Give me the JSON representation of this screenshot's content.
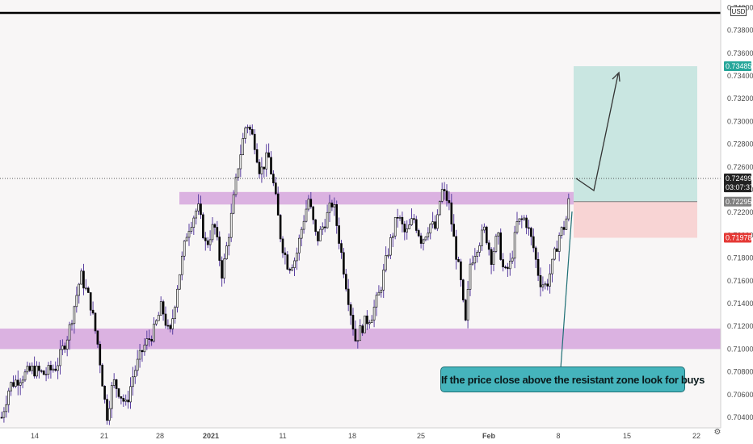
{
  "chart_data": {
    "type": "candlestick",
    "currency": "USD",
    "price_axis": {
      "ticks": [
        "0.74000",
        "0.73800",
        "0.73600",
        "0.73400",
        "0.73200",
        "0.73000",
        "0.72800",
        "0.72600",
        "0.72400",
        "0.72200",
        "0.72000",
        "0.71800",
        "0.71600",
        "0.71400",
        "0.71200",
        "0.71000",
        "0.70800",
        "0.70600",
        "0.70400"
      ],
      "range": [
        0.703,
        0.741
      ],
      "scale": "linear"
    },
    "time_axis": {
      "ticks": [
        "14",
        "21",
        "28",
        "2021",
        "11",
        "18",
        "25",
        "Feb",
        "8",
        "15",
        "22"
      ],
      "bold_ticks": [
        "2021",
        "Feb"
      ]
    },
    "price_badges": [
      {
        "label": "0.73485",
        "value": 0.73485,
        "color": "#26a69a",
        "role": "take-profit"
      },
      {
        "label": "0.72499",
        "value": 0.72499,
        "color": "#222222",
        "role": "last-price"
      },
      {
        "label": "03:07:37",
        "value": 0.7242,
        "color": "#222222",
        "role": "countdown"
      },
      {
        "label": "0.72295",
        "value": 0.72295,
        "color": "#808080",
        "role": "entry"
      },
      {
        "label": "0.71978",
        "value": 0.71978,
        "color": "#e53935",
        "role": "stop-loss"
      }
    ],
    "zones": [
      {
        "name": "resistance-zone",
        "low": 0.7227,
        "high": 0.7238,
        "color": "#d6a6dd"
      },
      {
        "name": "support-zone",
        "low": 0.71,
        "high": 0.7118,
        "color": "#d6a6dd"
      }
    ],
    "position": {
      "type": "long",
      "entry": 0.72295,
      "target": 0.73485,
      "stop": 0.71978,
      "profit_color": "#c9e6e1",
      "loss_color": "#f8d4d4"
    },
    "annotation_text": "If the price close above the resistant zone look for buys",
    "indicators": {
      "top_line": true,
      "last_price_dotted_line": true,
      "grid": false
    },
    "candle_colors": {
      "up": "#ffffff",
      "down": "#000000",
      "border": "#000000",
      "wick": "#5a3fa0"
    }
  }
}
